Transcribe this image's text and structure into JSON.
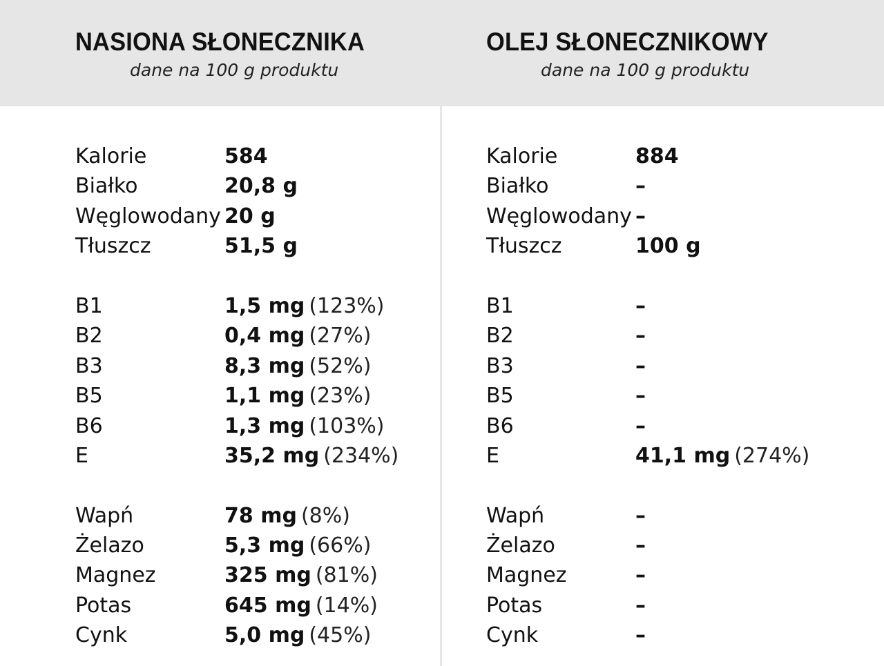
{
  "columns": [
    {
      "title": "NASIONA SŁONECZNIKA",
      "subtitle": "dane na 100 g produktu",
      "macros": [
        {
          "label": "Kalorie",
          "value": "584",
          "pct": ""
        },
        {
          "label": "Białko",
          "value": "20,8 g",
          "pct": ""
        },
        {
          "label": "Węglowodany",
          "value": "20 g",
          "pct": ""
        },
        {
          "label": "Tłuszcz",
          "value": "51,5 g",
          "pct": ""
        }
      ],
      "vitamins": [
        {
          "label": "B1",
          "value": "1,5 mg",
          "pct": "(123%)"
        },
        {
          "label": "B2",
          "value": "0,4 mg",
          "pct": "(27%)"
        },
        {
          "label": "B3",
          "value": "8,3 mg",
          "pct": "(52%)"
        },
        {
          "label": "B5",
          "value": "1,1 mg",
          "pct": "(23%)"
        },
        {
          "label": "B6",
          "value": "1,3 mg",
          "pct": "(103%)"
        },
        {
          "label": "E",
          "value": "35,2 mg",
          "pct": "(234%)"
        }
      ],
      "minerals": [
        {
          "label": "Wapń",
          "value": "78 mg",
          "pct": "(8%)"
        },
        {
          "label": "Żelazo",
          "value": "5,3 mg",
          "pct": "(66%)"
        },
        {
          "label": "Magnez",
          "value": "325 mg",
          "pct": "(81%)"
        },
        {
          "label": "Potas",
          "value": "645 mg",
          "pct": "(14%)"
        },
        {
          "label": "Cynk",
          "value": "5,0 mg",
          "pct": "(45%)"
        }
      ]
    },
    {
      "title": "OLEJ SŁONECZNIKOWY",
      "subtitle": "dane na 100 g produktu",
      "macros": [
        {
          "label": "Kalorie",
          "value": "884",
          "pct": ""
        },
        {
          "label": "Białko",
          "value": "–",
          "pct": ""
        },
        {
          "label": "Węglowodany",
          "value": "–",
          "pct": ""
        },
        {
          "label": "Tłuszcz",
          "value": "100 g",
          "pct": ""
        }
      ],
      "vitamins": [
        {
          "label": "B1",
          "value": "–",
          "pct": ""
        },
        {
          "label": "B2",
          "value": "–",
          "pct": ""
        },
        {
          "label": "B3",
          "value": "–",
          "pct": ""
        },
        {
          "label": "B5",
          "value": "–",
          "pct": ""
        },
        {
          "label": "B6",
          "value": "–",
          "pct": ""
        },
        {
          "label": "E",
          "value": "41,1 mg",
          "pct": "(274%)"
        }
      ],
      "minerals": [
        {
          "label": "Wapń",
          "value": "–",
          "pct": ""
        },
        {
          "label": "Żelazo",
          "value": "–",
          "pct": ""
        },
        {
          "label": "Magnez",
          "value": "–",
          "pct": ""
        },
        {
          "label": "Potas",
          "value": "–",
          "pct": ""
        },
        {
          "label": "Cynk",
          "value": "–",
          "pct": ""
        }
      ]
    }
  ]
}
